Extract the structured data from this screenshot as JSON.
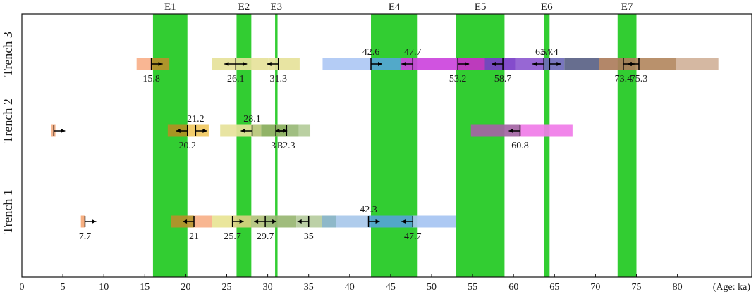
{
  "chart_data": {
    "type": "timeline",
    "x_axis": {
      "min": 0,
      "max": 90,
      "tick_values": [
        0,
        5,
        10,
        15,
        20,
        25,
        30,
        35,
        40,
        45,
        50,
        55,
        60,
        65,
        70,
        75,
        80
      ],
      "unit_label": "(Age: ka)"
    },
    "rows": [
      "Trench 3",
      "Trench 2",
      "Trench 1"
    ],
    "events": [
      {
        "label": "E1",
        "start": 16.0,
        "end": 20.2
      },
      {
        "label": "E2",
        "start": 26.2,
        "end": 28.0
      },
      {
        "label": "E3",
        "start": 30.9,
        "end": 31.2
      },
      {
        "label": "E4",
        "start": 42.6,
        "end": 48.3
      },
      {
        "label": "E5",
        "start": 53.0,
        "end": 58.9
      },
      {
        "label": "E6",
        "start": 63.7,
        "end": 64.4
      },
      {
        "label": "E7",
        "start": 72.7,
        "end": 75.0
      }
    ],
    "segments": [
      {
        "row": 0,
        "start": 14.0,
        "end": 15.8,
        "color": "#f8b08a"
      },
      {
        "row": 0,
        "start": 15.8,
        "end": 18.0,
        "color": "#b8902a"
      },
      {
        "row": 0,
        "start": 23.2,
        "end": 30.1,
        "color": "#e6e29a"
      },
      {
        "row": 0,
        "start": 30.1,
        "end": 33.9,
        "color": "#e6e29a"
      },
      {
        "row": 0,
        "start": 36.7,
        "end": 42.6,
        "color": "#aec8f4"
      },
      {
        "row": 0,
        "start": 42.6,
        "end": 46.2,
        "color": "#55a6d6"
      },
      {
        "row": 0,
        "start": 46.2,
        "end": 53.2,
        "color": "#cc44dd"
      },
      {
        "row": 0,
        "start": 53.2,
        "end": 56.5,
        "color": "#c82fc8"
      },
      {
        "row": 0,
        "start": 56.5,
        "end": 60.2,
        "color": "#7a3dc8"
      },
      {
        "row": 0,
        "start": 60.2,
        "end": 63.7,
        "color": "#8e5ad0"
      },
      {
        "row": 0,
        "start": 63.7,
        "end": 66.2,
        "color": "#6e6ab8"
      },
      {
        "row": 0,
        "start": 66.2,
        "end": 70.4,
        "color": "#5a6286"
      },
      {
        "row": 0,
        "start": 70.4,
        "end": 74.8,
        "color": "#ad7d5c"
      },
      {
        "row": 0,
        "start": 74.8,
        "end": 79.8,
        "color": "#b38860"
      },
      {
        "row": 0,
        "start": 79.8,
        "end": 85.0,
        "color": "#d1b29a"
      },
      {
        "row": 1,
        "start": 3.6,
        "end": 4.1,
        "color": "#f6b086"
      },
      {
        "row": 1,
        "start": 17.8,
        "end": 20.2,
        "color": "#b29022"
      },
      {
        "row": 1,
        "start": 20.2,
        "end": 22.8,
        "color": "#f0c860"
      },
      {
        "row": 1,
        "start": 24.2,
        "end": 28.1,
        "color": "#e6e29a"
      },
      {
        "row": 1,
        "start": 28.1,
        "end": 29.2,
        "color": "#b8c678"
      },
      {
        "row": 1,
        "start": 29.2,
        "end": 32.3,
        "color": "#88ac5a"
      },
      {
        "row": 1,
        "start": 32.3,
        "end": 33.8,
        "color": "#98b876"
      },
      {
        "row": 1,
        "start": 33.8,
        "end": 35.2,
        "color": "#b4cc9a"
      },
      {
        "row": 1,
        "start": 54.8,
        "end": 60.8,
        "color": "#a464a4"
      },
      {
        "row": 1,
        "start": 60.8,
        "end": 67.2,
        "color": "#f07ce8"
      },
      {
        "row": 2,
        "start": 7.2,
        "end": 7.7,
        "color": "#f6a876"
      },
      {
        "row": 2,
        "start": 18.2,
        "end": 21.0,
        "color": "#b6902a"
      },
      {
        "row": 2,
        "start": 21.0,
        "end": 23.2,
        "color": "#f7b088"
      },
      {
        "row": 2,
        "start": 23.2,
        "end": 25.7,
        "color": "#e8e494"
      },
      {
        "row": 2,
        "start": 25.7,
        "end": 28.0,
        "color": "#d8d080"
      },
      {
        "row": 2,
        "start": 28.0,
        "end": 29.7,
        "color": "#b2c27c"
      },
      {
        "row": 2,
        "start": 29.7,
        "end": 33.5,
        "color": "#98b672"
      },
      {
        "row": 2,
        "start": 33.5,
        "end": 36.6,
        "color": "#b6cc9e"
      },
      {
        "row": 2,
        "start": 36.6,
        "end": 38.3,
        "color": "#84b2c4"
      },
      {
        "row": 2,
        "start": 38.3,
        "end": 42.3,
        "color": "#a8c8ea"
      },
      {
        "row": 2,
        "start": 42.3,
        "end": 47.7,
        "color": "#55a4d4"
      },
      {
        "row": 2,
        "start": 47.7,
        "end": 53.0,
        "color": "#a6c4f2"
      }
    ],
    "ages": [
      {
        "row": 0,
        "value": 15.8,
        "label": "15.8",
        "dir": "right",
        "label_pos": "below"
      },
      {
        "row": 0,
        "value": 26.1,
        "label": "26.1",
        "dir": "both",
        "label_pos": "below"
      },
      {
        "row": 0,
        "value": 31.3,
        "label": "31.3",
        "dir": "left",
        "label_pos": "below"
      },
      {
        "row": 0,
        "value": 42.6,
        "label": "42.6",
        "dir": "right",
        "label_pos": "above"
      },
      {
        "row": 0,
        "value": 47.7,
        "label": "47.7",
        "dir": "left",
        "label_pos": "above"
      },
      {
        "row": 0,
        "value": 53.2,
        "label": "53.2",
        "dir": "right",
        "label_pos": "below"
      },
      {
        "row": 0,
        "value": 58.7,
        "label": "58.7",
        "dir": "left",
        "label_pos": "below"
      },
      {
        "row": 0,
        "value": 63.7,
        "label": "63.7",
        "dir": "left",
        "label_pos": "above"
      },
      {
        "row": 0,
        "value": 64.4,
        "label": "64.4",
        "dir": "right",
        "label_pos": "above"
      },
      {
        "row": 0,
        "value": 73.4,
        "label": "73.4",
        "dir": "right",
        "label_pos": "below"
      },
      {
        "row": 0,
        "value": 75.3,
        "label": "75.3",
        "dir": "left",
        "label_pos": "below"
      },
      {
        "row": 1,
        "value": 3.9,
        "label": "",
        "dir": "right",
        "label_pos": "none"
      },
      {
        "row": 1,
        "value": 20.2,
        "label": "20.2",
        "dir": "left",
        "label_pos": "below"
      },
      {
        "row": 1,
        "value": 21.2,
        "label": "21.2",
        "dir": "right",
        "label_pos": "above"
      },
      {
        "row": 1,
        "value": 28.1,
        "label": "28.1",
        "dir": "left",
        "label_pos": "above"
      },
      {
        "row": 1,
        "value": 31.0,
        "label": "31",
        "dir": "right",
        "label_pos": "below"
      },
      {
        "row": 1,
        "value": 32.3,
        "label": "32.3",
        "dir": "left",
        "label_pos": "below"
      },
      {
        "row": 1,
        "value": 60.8,
        "label": "60.8",
        "dir": "left",
        "label_pos": "below"
      },
      {
        "row": 2,
        "value": 7.7,
        "label": "7.7",
        "dir": "right",
        "label_pos": "below"
      },
      {
        "row": 2,
        "value": 21.0,
        "label": "21",
        "dir": "left",
        "label_pos": "below"
      },
      {
        "row": 2,
        "value": 25.7,
        "label": "25.7",
        "dir": "right",
        "label_pos": "below"
      },
      {
        "row": 2,
        "value": 29.7,
        "label": "29.7",
        "dir": "both",
        "label_pos": "below"
      },
      {
        "row": 2,
        "value": 35.0,
        "label": "35",
        "dir": "left",
        "label_pos": "below"
      },
      {
        "row": 2,
        "value": 42.3,
        "label": "42.3",
        "dir": "right",
        "label_pos": "above"
      },
      {
        "row": 2,
        "value": 47.7,
        "label": "47.7",
        "dir": "left",
        "label_pos": "below"
      }
    ],
    "grid": false,
    "legend": "none"
  }
}
